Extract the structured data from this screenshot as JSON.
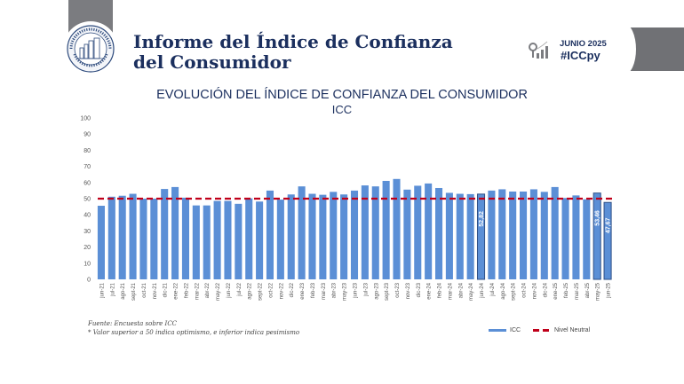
{
  "header": {
    "title_line1": "Informe del Índice de Confianza",
    "title_line2": "del Consumidor",
    "logo_text": "BANCO CENTRAL DEL PARAGUAY",
    "date": "JUNIO 2025",
    "hashtag": "#ICCpy",
    "stats_icon": "magnifier-bars-icon"
  },
  "colors": {
    "bar": "#5b8fd6",
    "bar_highlight_border": "#2f4f86",
    "neutral_line": "#c0001a",
    "title": "#1b2f5e",
    "gray": "#7b7c80"
  },
  "footer": {
    "source": "Fuente: Encuesta sobre ICC",
    "note": "* Valor superior a 50 indica optimismo, e inferior indica pesimismo"
  },
  "chart_data": {
    "type": "bar",
    "title": "EVOLUCIÓN DEL ÍNDICE DE CONFIANZA DEL CONSUMIDOR",
    "subtitle": "ICC",
    "xlabel": "",
    "ylabel": "",
    "ylim": [
      0,
      100
    ],
    "yticks": [
      0,
      10,
      20,
      30,
      40,
      50,
      60,
      70,
      80,
      90,
      100
    ],
    "grid": false,
    "legend_position": "bottom-right",
    "categories": [
      "jun-21",
      "jul-21",
      "ago-21",
      "sept-21",
      "oct-21",
      "nov-21",
      "dic-21",
      "ene-22",
      "feb-22",
      "mar-22",
      "abr-22",
      "may-22",
      "jun-22",
      "jul-22",
      "ago-22",
      "sept-22",
      "oct-22",
      "nov-22",
      "dic-22",
      "ene-23",
      "feb-23",
      "mar-23",
      "abr-23",
      "may-23",
      "jun-23",
      "jul-23",
      "ago-23",
      "sept-23",
      "oct-23",
      "nov-23",
      "dic-23",
      "ene-24",
      "feb-24",
      "mar-24",
      "abr-24",
      "may-24",
      "jun-24",
      "jul-24",
      "ago-24",
      "sept-24",
      "oct-24",
      "nov-24",
      "dic-24",
      "ene-25",
      "feb-25",
      "mar-25",
      "abr-25",
      "may-25",
      "jun-25"
    ],
    "series": [
      {
        "name": "ICC",
        "type": "bar",
        "values": [
          45.6,
          51.2,
          51.8,
          53.0,
          50.0,
          50.0,
          56.0,
          57.2,
          50.6,
          45.8,
          45.8,
          48.6,
          48.6,
          46.8,
          50.2,
          48.2,
          55.0,
          49.4,
          52.6,
          57.6,
          53.0,
          52.4,
          54.2,
          52.6,
          55.0,
          58.2,
          57.6,
          61.0,
          62.2,
          55.6,
          58.0,
          59.4,
          56.6,
          53.6,
          53.0,
          52.8,
          52.82,
          55.0,
          55.8,
          54.4,
          54.4,
          55.8,
          54.2,
          57.2,
          50.4,
          52.0,
          49.6,
          53.46,
          47.67
        ]
      },
      {
        "name": "Nivel Neutral",
        "type": "line",
        "value": 50
      }
    ],
    "data_labels": [
      {
        "category": "jun-24",
        "text": "52,82"
      },
      {
        "category": "may-25",
        "text": "53,46"
      },
      {
        "category": "jun-25",
        "text": "47,67"
      }
    ]
  }
}
